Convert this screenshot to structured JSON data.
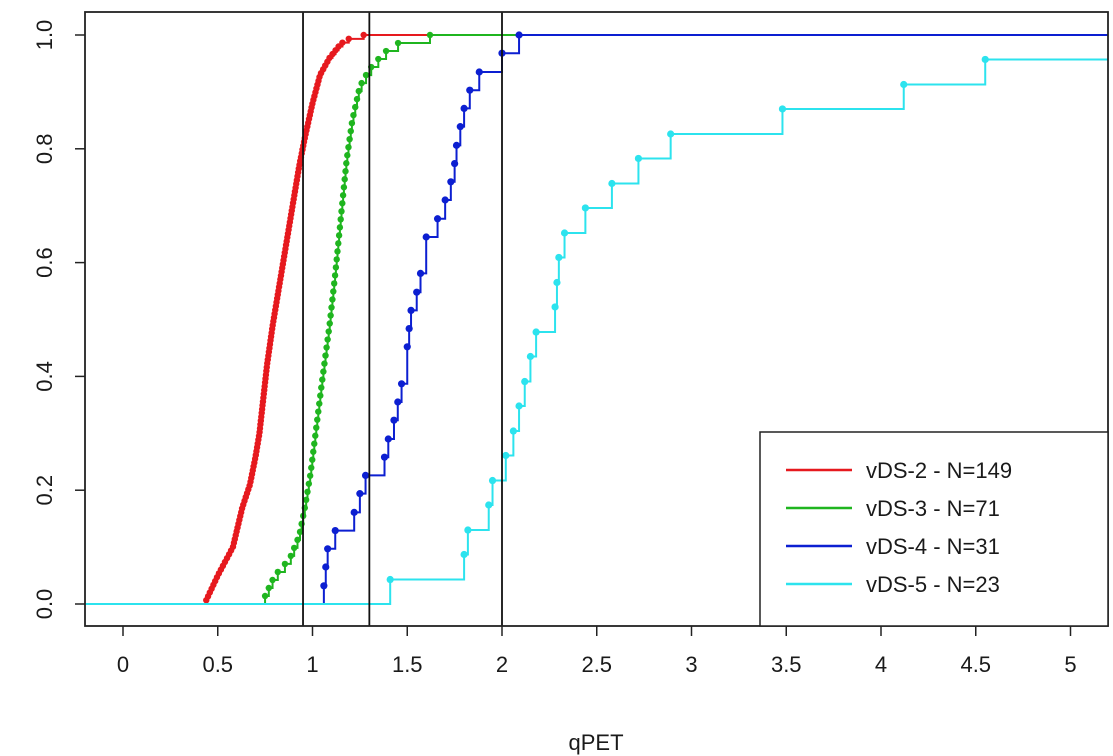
{
  "chart_data": {
    "type": "line",
    "subtype": "empirical cumulative distribution (step) with points",
    "title": "",
    "xlabel": "qPET",
    "ylabel": "",
    "xlim": [
      -0.2,
      5.2
    ],
    "ylim": [
      -0.04,
      1.04
    ],
    "x_ticks": [
      "0",
      "0.5",
      "1",
      "1.5",
      "2",
      "2.5",
      "3",
      "3.5",
      "4",
      "4.5",
      "5"
    ],
    "y_ticks": [
      "0.0",
      "0.2",
      "0.4",
      "0.6",
      "0.8",
      "1.0"
    ],
    "grid": false,
    "legend_position": "bottom-right",
    "reference_lines_x": [
      0.95,
      1.3,
      2.0
    ],
    "series": [
      {
        "name": "vDS-2 - N=149",
        "color": "#e6191e",
        "n": 149,
        "x_range": [
          0.43,
          1.27
        ],
        "anchor_points": [
          [
            0.43,
            0.0
          ],
          [
            0.5,
            0.05
          ],
          [
            0.58,
            0.1
          ],
          [
            0.63,
            0.17
          ],
          [
            0.67,
            0.21
          ],
          [
            0.7,
            0.26
          ],
          [
            0.72,
            0.3
          ],
          [
            0.74,
            0.36
          ],
          [
            0.76,
            0.42
          ],
          [
            0.79,
            0.49
          ],
          [
            0.82,
            0.55
          ],
          [
            0.86,
            0.63
          ],
          [
            0.9,
            0.71
          ],
          [
            0.93,
            0.77
          ],
          [
            0.96,
            0.82
          ],
          [
            1.0,
            0.88
          ],
          [
            1.04,
            0.93
          ],
          [
            1.09,
            0.96
          ],
          [
            1.15,
            0.985
          ],
          [
            1.2,
            0.995
          ],
          [
            1.27,
            1.0
          ]
        ]
      },
      {
        "name": "vDS-3 - N=71",
        "color": "#1fb51f",
        "n": 71,
        "x_range": [
          0.73,
          1.62
        ],
        "anchor_points": [
          [
            0.73,
            0.0
          ],
          [
            0.8,
            0.05
          ],
          [
            0.88,
            0.08
          ],
          [
            0.93,
            0.12
          ],
          [
            0.96,
            0.17
          ],
          [
            0.99,
            0.23
          ],
          [
            1.02,
            0.31
          ],
          [
            1.05,
            0.39
          ],
          [
            1.09,
            0.49
          ],
          [
            1.12,
            0.58
          ],
          [
            1.15,
            0.68
          ],
          [
            1.18,
            0.78
          ],
          [
            1.21,
            0.85
          ],
          [
            1.25,
            0.91
          ],
          [
            1.3,
            0.94
          ],
          [
            1.38,
            0.97
          ],
          [
            1.47,
            0.99
          ],
          [
            1.62,
            1.0
          ]
        ]
      },
      {
        "name": "vDS-4 - N=31",
        "color": "#0c1fd1",
        "n": 31,
        "points": [
          [
            1.06,
            0.032
          ],
          [
            1.07,
            0.065
          ],
          [
            1.08,
            0.097
          ],
          [
            1.12,
            0.129
          ],
          [
            1.22,
            0.161
          ],
          [
            1.25,
            0.194
          ],
          [
            1.28,
            0.226
          ],
          [
            1.38,
            0.258
          ],
          [
            1.4,
            0.29
          ],
          [
            1.43,
            0.323
          ],
          [
            1.45,
            0.355
          ],
          [
            1.47,
            0.387
          ],
          [
            1.5,
            0.452
          ],
          [
            1.51,
            0.484
          ],
          [
            1.52,
            0.516
          ],
          [
            1.55,
            0.548
          ],
          [
            1.57,
            0.581
          ],
          [
            1.6,
            0.645
          ],
          [
            1.66,
            0.677
          ],
          [
            1.7,
            0.71
          ],
          [
            1.73,
            0.742
          ],
          [
            1.75,
            0.774
          ],
          [
            1.76,
            0.806
          ],
          [
            1.78,
            0.839
          ],
          [
            1.8,
            0.871
          ],
          [
            1.83,
            0.903
          ],
          [
            1.88,
            0.935
          ],
          [
            2.0,
            0.968
          ],
          [
            2.09,
            1.0
          ]
        ]
      },
      {
        "name": "vDS-5 - N=23",
        "color": "#2ce3ee",
        "n": 23,
        "points": [
          [
            1.41,
            0.043
          ],
          [
            1.8,
            0.087
          ],
          [
            1.82,
            0.13
          ],
          [
            1.93,
            0.174
          ],
          [
            1.95,
            0.217
          ],
          [
            2.02,
            0.261
          ],
          [
            2.06,
            0.304
          ],
          [
            2.09,
            0.348
          ],
          [
            2.12,
            0.391
          ],
          [
            2.15,
            0.435
          ],
          [
            2.18,
            0.478
          ],
          [
            2.28,
            0.522
          ],
          [
            2.29,
            0.565
          ],
          [
            2.3,
            0.609
          ],
          [
            2.33,
            0.652
          ],
          [
            2.44,
            0.696
          ],
          [
            2.58,
            0.739
          ],
          [
            2.72,
            0.783
          ],
          [
            2.89,
            0.826
          ],
          [
            3.48,
            0.87
          ],
          [
            4.12,
            0.913
          ],
          [
            4.55,
            0.957
          ]
        ]
      }
    ]
  }
}
